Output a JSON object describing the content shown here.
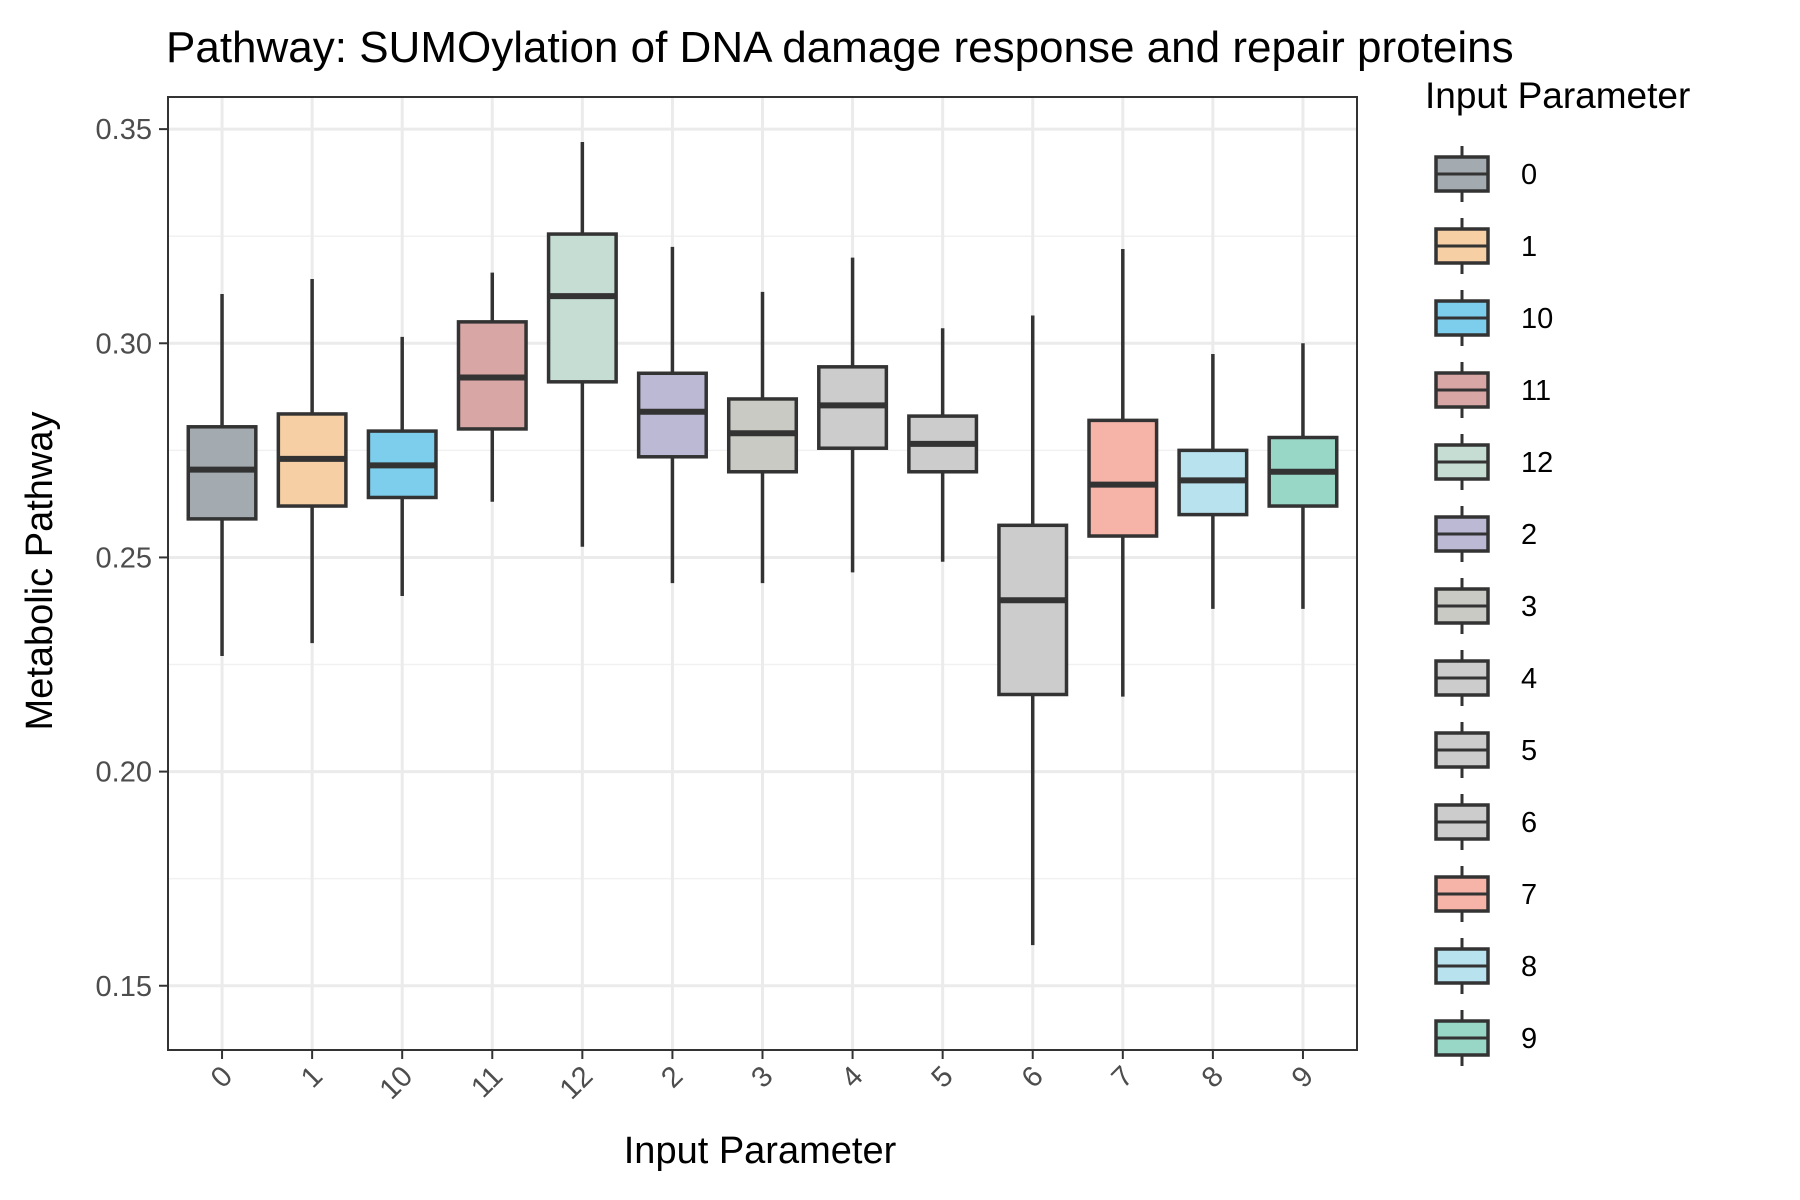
{
  "chart_data": {
    "type": "box",
    "title": "Pathway: SUMOylation of DNA damage response and repair proteins",
    "xlabel": "Input Parameter",
    "ylabel": "Metabolic Pathway",
    "ylim": [
      0.135,
      0.3575
    ],
    "yticks": [
      "0.15",
      "0.20",
      "0.25",
      "0.30",
      "0.35"
    ],
    "grid": true,
    "legend": {
      "title": "Input Parameter",
      "position": "right"
    },
    "categories": [
      "0",
      "1",
      "10",
      "11",
      "12",
      "2",
      "3",
      "4",
      "5",
      "6",
      "7",
      "8",
      "9"
    ],
    "boxes": [
      {
        "category": "0",
        "whisker_low": 0.227,
        "q1": 0.259,
        "median": 0.2705,
        "q3": 0.2805,
        "whisker_high": 0.3115,
        "color": "#A4ABB0"
      },
      {
        "category": "1",
        "whisker_low": 0.23,
        "q1": 0.262,
        "median": 0.273,
        "q3": 0.2835,
        "whisker_high": 0.315,
        "color": "#F6CFA5"
      },
      {
        "category": "10",
        "whisker_low": 0.241,
        "q1": 0.264,
        "median": 0.2715,
        "q3": 0.2795,
        "whisker_high": 0.3015,
        "color": "#7DCDEC"
      },
      {
        "category": "11",
        "whisker_low": 0.263,
        "q1": 0.28,
        "median": 0.292,
        "q3": 0.305,
        "whisker_high": 0.3165,
        "color": "#D9A6A6"
      },
      {
        "category": "12",
        "whisker_low": 0.2525,
        "q1": 0.291,
        "median": 0.311,
        "q3": 0.3255,
        "whisker_high": 0.347,
        "color": "#C5DDD3"
      },
      {
        "category": "2",
        "whisker_low": 0.244,
        "q1": 0.2735,
        "median": 0.284,
        "q3": 0.293,
        "whisker_high": 0.3225,
        "color": "#BBB9D4"
      },
      {
        "category": "3",
        "whisker_low": 0.244,
        "q1": 0.27,
        "median": 0.279,
        "q3": 0.287,
        "whisker_high": 0.312,
        "color": "#CACAC4"
      },
      {
        "category": "4",
        "whisker_low": 0.2465,
        "q1": 0.2755,
        "median": 0.2855,
        "q3": 0.2945,
        "whisker_high": 0.32,
        "color": "#CCCCCC"
      },
      {
        "category": "5",
        "whisker_low": 0.249,
        "q1": 0.27,
        "median": 0.2765,
        "q3": 0.283,
        "whisker_high": 0.3035,
        "color": "#CCCCCC"
      },
      {
        "category": "6",
        "whisker_low": 0.1595,
        "q1": 0.218,
        "median": 0.24,
        "q3": 0.2575,
        "whisker_high": 0.3065,
        "color": "#CCCCCC"
      },
      {
        "category": "7",
        "whisker_low": 0.2175,
        "q1": 0.255,
        "median": 0.267,
        "q3": 0.282,
        "whisker_high": 0.322,
        "color": "#F6B3A8"
      },
      {
        "category": "8",
        "whisker_low": 0.238,
        "q1": 0.26,
        "median": 0.268,
        "q3": 0.275,
        "whisker_high": 0.2975,
        "color": "#B8E2EE"
      },
      {
        "category": "9",
        "whisker_low": 0.238,
        "q1": 0.262,
        "median": 0.27,
        "q3": 0.278,
        "whisker_high": 0.3,
        "color": "#98D6C6"
      }
    ]
  }
}
